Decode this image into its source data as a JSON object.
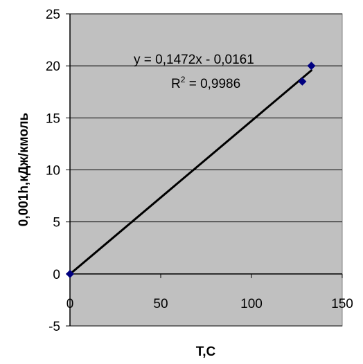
{
  "chart_data": {
    "type": "scatter",
    "xlabel": "T,C",
    "ylabel": "0,001h,кДж/кмоль",
    "xlim": [
      0,
      150
    ],
    "ylim": [
      -5,
      25
    ],
    "x_ticks": [
      "0",
      "50",
      "100",
      "150"
    ],
    "y_ticks": [
      "-5",
      "0",
      "5",
      "10",
      "15",
      "20",
      "25"
    ],
    "grid": "horizontal",
    "background": "#c0c0c0",
    "marker_color": "#000080",
    "series": [
      {
        "points": [
          {
            "x": 0,
            "y": 0
          },
          {
            "x": 128,
            "y": 18.5
          },
          {
            "x": 133,
            "y": 20
          }
        ]
      }
    ],
    "trendline": {
      "type": "linear",
      "slope": 0.1472,
      "intercept": -0.0161,
      "x_range": [
        0,
        133
      ],
      "equation_text": "y = 0,1472x - 0,0161",
      "r2_prefix": "R",
      "r2_exponent": "2",
      "r2_suffix": " = 0,9986"
    }
  }
}
